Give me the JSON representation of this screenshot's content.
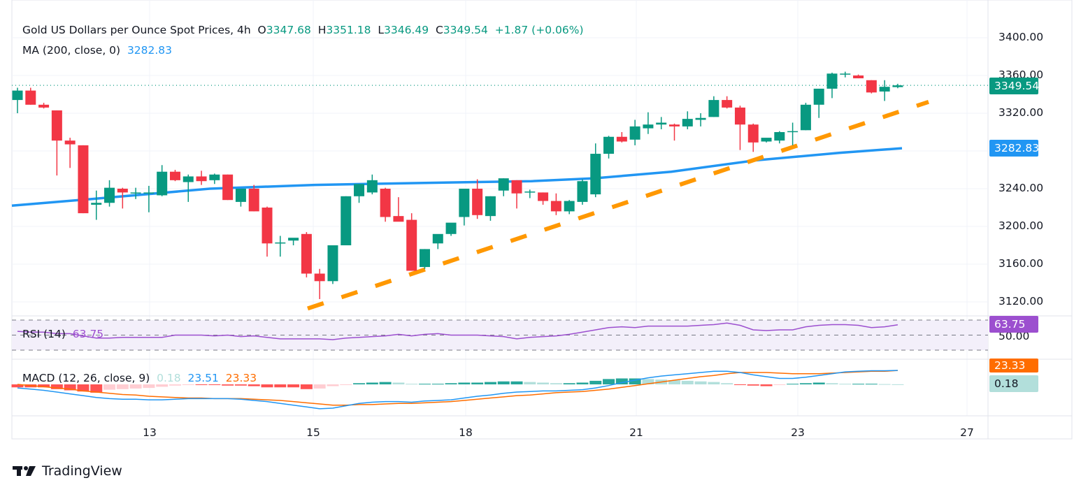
{
  "header": {
    "symbol": "Gold US Dollars per Ounce Spot Prices, 4h",
    "open_label": "O",
    "open": "3347.68",
    "high_label": "H",
    "high": "3351.18",
    "low_label": "L",
    "low": "3346.49",
    "close_label": "C",
    "close": "3349.54",
    "change": "+1.87 (+0.06%)"
  },
  "ma_legend": {
    "label": "MA (200, close, 0)",
    "value": "3282.83"
  },
  "rsi_legend": {
    "label": "RSI (14)",
    "value": "63.75"
  },
  "macd_legend": {
    "label": "MACD (12, 26, close, 9)",
    "hist": "0.18",
    "macd": "23.51",
    "signal": "23.33"
  },
  "price_axis": [
    "3400.00",
    "3360.00",
    "3320.00",
    "3240.00",
    "3200.00",
    "3160.00",
    "3120.00"
  ],
  "rsi_axis": [
    "50.00"
  ],
  "tags": {
    "last_price": "3349.54",
    "ma": "3282.83",
    "rsi": "63.75",
    "macd_signal": "23.33",
    "macd_hist": "0.18"
  },
  "x_axis": [
    "13",
    "15",
    "18",
    "21",
    "23",
    "27"
  ],
  "brand": "TradingView",
  "colors": {
    "up": "#089981",
    "down": "#f23645",
    "ma": "#2196f3",
    "trend": "#ff9800",
    "rsi": "#9c4fcf",
    "macd": "#2196f3",
    "signal": "#ff6d00",
    "hist_up_strong": "#26a69a",
    "hist_up_weak": "#b2dfdb",
    "hist_down_strong": "#ff5252",
    "hist_down_weak": "#ffcdd2"
  },
  "chart_data": [
    {
      "type": "candlestick",
      "title": "Gold US Dollars per Ounce Spot Prices, 4h",
      "ylim": [
        3100,
        3420
      ],
      "yticks": [
        3120,
        3160,
        3200,
        3240,
        3320,
        3360,
        3400
      ],
      "xticks": [
        "13",
        "15",
        "18",
        "21",
        "23",
        "27"
      ],
      "candles": [
        [
          3334,
          3347,
          3320,
          3344
        ],
        [
          3344,
          3347,
          3329,
          3329
        ],
        [
          3329,
          3331,
          3325,
          3326
        ],
        [
          3323,
          3323,
          3254,
          3291
        ],
        [
          3291,
          3294,
          3262,
          3287
        ],
        [
          3286,
          3286,
          3214,
          3214
        ],
        [
          3223,
          3238,
          3207,
          3225
        ],
        [
          3225,
          3249,
          3221,
          3241
        ],
        [
          3240,
          3241,
          3219,
          3236
        ],
        [
          3236,
          3241,
          3229,
          3236
        ],
        [
          3236,
          3243,
          3215,
          3236
        ],
        [
          3233,
          3265,
          3232,
          3258
        ],
        [
          3258,
          3260,
          3248,
          3249
        ],
        [
          3247,
          3255,
          3226,
          3253
        ],
        [
          3253,
          3259,
          3244,
          3248
        ],
        [
          3249,
          3256,
          3245,
          3255
        ],
        [
          3255,
          3255,
          3228,
          3228
        ],
        [
          3226,
          3240,
          3221,
          3240
        ],
        [
          3240,
          3244,
          3216,
          3216
        ],
        [
          3220,
          3221,
          3168,
          3182
        ],
        [
          3183,
          3190,
          3168,
          3183
        ],
        [
          3185,
          3187,
          3180,
          3188
        ],
        [
          3192,
          3194,
          3146,
          3150
        ],
        [
          3150,
          3155,
          3123,
          3142
        ],
        [
          3142,
          3180,
          3139,
          3180
        ],
        [
          3180,
          3232,
          3180,
          3232
        ],
        [
          3232,
          3245,
          3225,
          3245
        ],
        [
          3236,
          3255,
          3234,
          3249
        ],
        [
          3240,
          3241,
          3205,
          3210
        ],
        [
          3211,
          3231,
          3207,
          3205
        ],
        [
          3207,
          3214,
          3153,
          3153
        ],
        [
          3157,
          3176,
          3155,
          3176
        ],
        [
          3182,
          3185,
          3176,
          3192
        ],
        [
          3192,
          3199,
          3190,
          3204
        ],
        [
          3210,
          3237,
          3201,
          3240
        ],
        [
          3240,
          3250,
          3208,
          3212
        ],
        [
          3211,
          3232,
          3206,
          3232
        ],
        [
          3238,
          3251,
          3232,
          3251
        ],
        [
          3249,
          3249,
          3219,
          3235
        ],
        [
          3236,
          3239,
          3230,
          3237
        ],
        [
          3236,
          3236,
          3223,
          3227
        ],
        [
          3227,
          3235,
          3212,
          3216
        ],
        [
          3216,
          3228,
          3213,
          3227
        ],
        [
          3226,
          3250,
          3223,
          3248
        ],
        [
          3234,
          3288,
          3231,
          3277
        ],
        [
          3277,
          3296,
          3272,
          3295
        ],
        [
          3295,
          3300,
          3289,
          3290
        ],
        [
          3292,
          3313,
          3286,
          3306
        ],
        [
          3304,
          3321,
          3298,
          3308
        ],
        [
          3308,
          3316,
          3303,
          3310
        ],
        [
          3308,
          3309,
          3291,
          3306
        ],
        [
          3306,
          3322,
          3303,
          3314
        ],
        [
          3313,
          3320,
          3306,
          3315
        ],
        [
          3316,
          3338,
          3316,
          3334
        ],
        [
          3334,
          3338,
          3325,
          3326
        ],
        [
          3326,
          3328,
          3281,
          3308
        ],
        [
          3308,
          3309,
          3279,
          3289
        ],
        [
          3290,
          3293,
          3289,
          3294
        ],
        [
          3291,
          3301,
          3288,
          3300
        ],
        [
          3300,
          3310,
          3286,
          3301
        ],
        [
          3302,
          3331,
          3302,
          3329
        ],
        [
          3329,
          3338,
          3315,
          3346
        ],
        [
          3346,
          3363,
          3336,
          3362
        ],
        [
          3362,
          3364,
          3358,
          3362
        ],
        [
          3360,
          3361,
          3357,
          3357
        ],
        [
          3355,
          3355,
          3341,
          3342
        ],
        [
          3343,
          3355,
          3333,
          3348
        ],
        [
          3347.68,
          3351.18,
          3346.49,
          3349.54
        ]
      ],
      "series": [
        {
          "name": "MA (200, close, 0)",
          "type": "line",
          "last": 3282.83
        },
        {
          "name": "Trendline (dashed, ascending support)",
          "type": "line",
          "from": 3113,
          "to": 3332
        }
      ],
      "last_price": 3349.54
    },
    {
      "type": "line",
      "title": "RSI (14)",
      "ylim": [
        20,
        80
      ],
      "bands": [
        70,
        50,
        30
      ],
      "values": [
        55,
        54,
        54,
        52,
        52,
        49,
        46,
        46,
        47,
        47,
        47,
        47,
        50,
        50,
        50,
        49,
        50,
        48,
        49,
        47,
        45,
        45,
        45,
        45,
        44,
        46,
        47,
        48,
        49,
        51,
        49,
        51,
        52,
        50,
        50,
        50,
        49,
        48,
        45,
        47,
        48,
        49,
        51,
        54,
        57,
        60,
        61,
        60,
        62,
        62,
        62,
        62,
        63,
        64,
        66,
        63,
        57,
        56,
        57,
        57,
        61,
        63,
        64,
        64,
        63,
        60,
        61,
        63.75
      ]
    },
    {
      "type": "bar+line",
      "title": "MACD (12, 26, close, 9)",
      "histogram": [
        -5,
        -5,
        -5,
        -8,
        -10,
        -12,
        -14,
        -9,
        -8,
        -7,
        -6,
        -4,
        -2,
        -1,
        -1,
        -1,
        -2,
        -2,
        -3,
        -5,
        -5,
        -5,
        -8,
        -7,
        -3,
        -1,
        2,
        3,
        4,
        3,
        1,
        1,
        1,
        2,
        3,
        3,
        4,
        5,
        5,
        4,
        3,
        2,
        2,
        3,
        6,
        9,
        10,
        10,
        9,
        8,
        7,
        6,
        5,
        4,
        2,
        -1,
        -2,
        -3,
        -1,
        1,
        2,
        3,
        2,
        1,
        1,
        1,
        0.5,
        0.18
      ],
      "macd": [
        -6,
        -8,
        -10,
        -13,
        -16,
        -19,
        -22,
        -24,
        -25,
        -25,
        -26,
        -26,
        -25,
        -24,
        -24,
        -24,
        -24,
        -25,
        -27,
        -29,
        -32,
        -35,
        -38,
        -41,
        -40,
        -36,
        -32,
        -30,
        -29,
        -29,
        -30,
        -28,
        -27,
        -26,
        -23,
        -20,
        -18,
        -15,
        -13,
        -12,
        -11,
        -11,
        -10,
        -9,
        -6,
        -2,
        3,
        7,
        11,
        14,
        16,
        18,
        20,
        22,
        22,
        20,
        16,
        13,
        10,
        10,
        12,
        15,
        18,
        21,
        22,
        23,
        23,
        23.51
      ],
      "signal": [
        0,
        -2,
        -4,
        -6,
        -8,
        -11,
        -13,
        -15,
        -17,
        -18,
        -20,
        -21,
        -22,
        -23,
        -23,
        -24,
        -24,
        -24,
        -25,
        -26,
        -27,
        -29,
        -31,
        -33,
        -35,
        -35,
        -34,
        -34,
        -33,
        -32,
        -32,
        -31,
        -30,
        -29,
        -27,
        -25,
        -23,
        -21,
        -19,
        -18,
        -16,
        -14,
        -13,
        -12,
        -10,
        -8,
        -5,
        -2,
        1,
        4,
        7,
        10,
        13,
        15,
        18,
        20,
        20,
        20,
        19,
        18,
        18,
        18,
        19,
        20,
        21,
        22,
        22,
        23.33
      ]
    }
  ]
}
